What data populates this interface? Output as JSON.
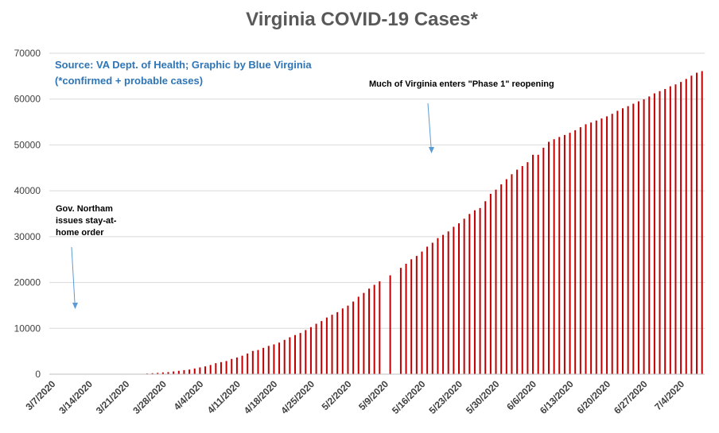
{
  "chart_data": {
    "type": "bar",
    "title": "Virginia COVID-19 Cases*",
    "source_lines": [
      "Source: VA Dept. of Health; Graphic by Blue Virginia",
      "(*confirmed + probable cases)"
    ],
    "xlabel": "",
    "ylabel": "",
    "ylim": [
      0,
      70000
    ],
    "yticks": [
      0,
      10000,
      20000,
      30000,
      40000,
      50000,
      60000,
      70000
    ],
    "xtick_labels": [
      "3/7/2020",
      "3/14/2020",
      "3/21/2020",
      "3/28/2020",
      "4/4/2020",
      "4/11/2020",
      "4/18/2020",
      "4/25/2020",
      "5/2/2020",
      "5/9/2020",
      "5/16/2020",
      "5/23/2020",
      "5/30/2020",
      "6/6/2020",
      "6/13/2020",
      "6/20/2020",
      "6/27/2020",
      "7/4/2020"
    ],
    "grid": true,
    "bar_color": "#c00000",
    "series": [
      {
        "values": [
          0,
          0,
          0,
          0,
          0,
          0,
          0,
          0,
          0,
          0,
          0,
          0,
          0,
          0,
          0,
          0,
          0,
          0,
          152,
          219,
          290,
          391,
          460,
          604,
          739,
          890,
          1020,
          1250,
          1484,
          1706,
          2012,
          2407,
          2637,
          2878,
          3333,
          3645,
          4042,
          4509,
          5077,
          5274,
          5747,
          6171,
          6500,
          6889,
          7491,
          8053,
          8537,
          8990,
          9630,
          10266,
          10998,
          11594,
          12366,
          12970,
          13535,
          14339,
          14961,
          15846,
          16901,
          17731,
          18671,
          19492,
          20256,
          0,
          21570,
          0,
          23196,
          24081,
          25070,
          25800,
          26746,
          27813,
          28672,
          29683,
          30388,
          31140,
          32145,
          32908,
          33908,
          34950,
          35749,
          36244,
          37727,
          39342,
          40249,
          41401,
          42533,
          43611,
          44607,
          45398,
          46239,
          47856,
          47856,
          49397,
          50681,
          51251,
          51738,
          52177,
          52647,
          53211,
          53869,
          54506,
          54886,
          55331,
          55775,
          56238,
          56793,
          57443,
          57994,
          58465,
          58994,
          59514,
          59946,
          60570,
          61247,
          61736,
          62189,
          62787,
          63203,
          63735,
          64393,
          65109,
          65748,
          66102
        ],
        "value_precision": "approximate (read from chart)"
      }
    ],
    "annotations": [
      {
        "lines": [
          "Gov. Northam",
          "issues stay-at-",
          "home order"
        ],
        "target_date": "3/30/2020"
      },
      {
        "lines": [
          "Much of Virginia enters \"Phase 1\" reopening"
        ],
        "target_date": "5/15/2020"
      }
    ],
    "colors": {
      "title": "#595959",
      "source_text": "#2e75b6",
      "arrow": "#5b9bd5",
      "grid": "#d9d9d9"
    }
  }
}
